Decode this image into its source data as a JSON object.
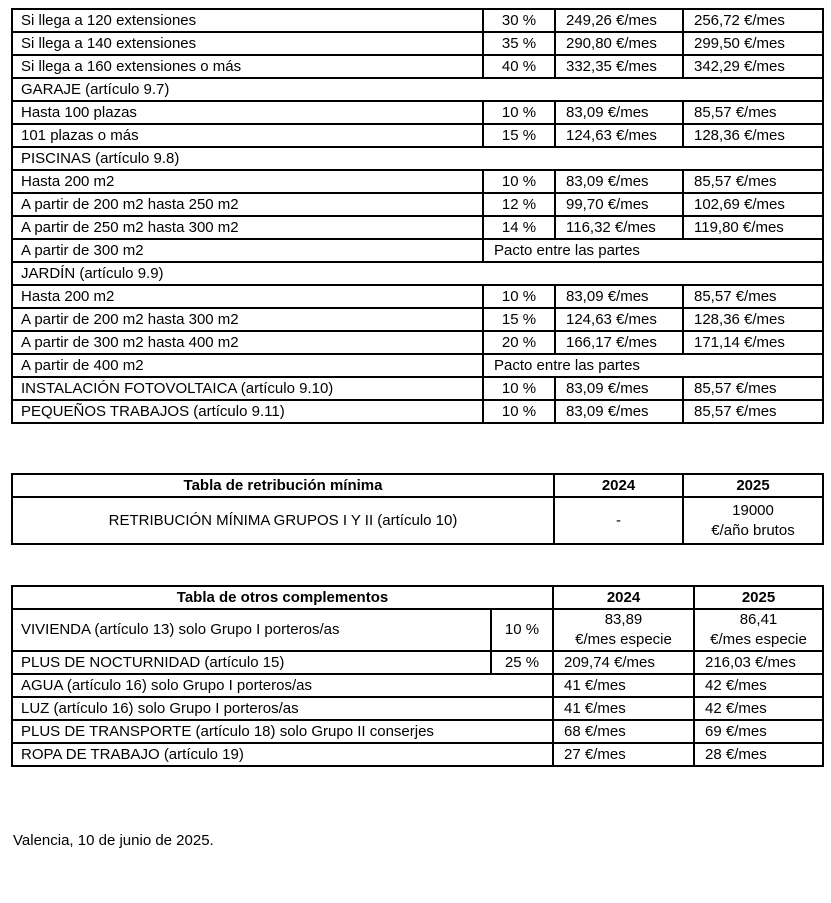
{
  "colors": {
    "text": "#000000",
    "background": "#ffffff",
    "table_border": "#000000"
  },
  "table1": {
    "rows": [
      {
        "type": "data",
        "concept": "Si llega a 120 extensiones",
        "percent": "30 %",
        "y2024": "249,26 €/mes",
        "y2025": "256,72 €/mes"
      },
      {
        "type": "data",
        "concept": "Si llega a 140 extensiones",
        "percent": "35 %",
        "y2024": "290,80 €/mes",
        "y2025": "299,50 €/mes"
      },
      {
        "type": "data",
        "concept": "Si llega a 160 extensiones o más",
        "percent": "40 %",
        "y2024": "332,35 €/mes",
        "y2025": "342,29 €/mes"
      },
      {
        "type": "section",
        "concept": "GARAJE (artículo 9.7)"
      },
      {
        "type": "data",
        "concept": "Hasta 100 plazas",
        "percent": "10 %",
        "y2024": "83,09 €/mes",
        "y2025": "85,57 €/mes"
      },
      {
        "type": "data",
        "concept": "101 plazas o más",
        "percent": "15 %",
        "y2024": "124,63 €/mes",
        "y2025": "128,36 €/mes"
      },
      {
        "type": "section",
        "concept": "PISCINAS (artículo 9.8)"
      },
      {
        "type": "data",
        "concept": "Hasta 200 m2",
        "percent": "10 %",
        "y2024": "83,09 €/mes",
        "y2025": "85,57 €/mes"
      },
      {
        "type": "data",
        "concept": "A partir de 200 m2 hasta 250 m2",
        "percent": "12 %",
        "y2024": "99,70 €/mes",
        "y2025": "102,69 €/mes"
      },
      {
        "type": "data",
        "concept": "A partir de 250 m2 hasta 300 m2",
        "percent": "14 %",
        "y2024": "116,32 €/mes",
        "y2025": "119,80 €/mes"
      },
      {
        "type": "pacto",
        "concept": "A partir de 300 m2",
        "value": "Pacto entre las partes"
      },
      {
        "type": "section",
        "concept": "JARDÍN (artículo 9.9)"
      },
      {
        "type": "data",
        "concept": "Hasta 200 m2",
        "percent": "10 %",
        "y2024": "83,09 €/mes",
        "y2025": "85,57 €/mes"
      },
      {
        "type": "data",
        "concept": "A partir de 200 m2 hasta 300 m2",
        "percent": "15 %",
        "y2024": "124,63 €/mes",
        "y2025": "128,36 €/mes"
      },
      {
        "type": "data",
        "concept": "A partir de 300 m2 hasta 400 m2",
        "percent": "20 %",
        "y2024": "166,17 €/mes",
        "y2025": "171,14 €/mes"
      },
      {
        "type": "pacto",
        "concept": "A partir de 400 m2",
        "value": "Pacto entre las partes"
      },
      {
        "type": "data",
        "concept": "INSTALACIÓN FOTOVOLTAICA (artículo 9.10)",
        "percent": "10 %",
        "y2024": "83,09 €/mes",
        "y2025": "85,57 €/mes"
      },
      {
        "type": "data",
        "concept": "PEQUEÑOS TRABAJOS (artículo 9.11)",
        "percent": "10 %",
        "y2024": "83,09 €/mes",
        "y2025": "85,57 €/mes"
      }
    ]
  },
  "table2": {
    "title": "Tabla de retribución mínima",
    "col2024": "2024",
    "col2025": "2025",
    "row": {
      "concept": "RETRIBUCIÓN MÍNIMA GRUPOS I Y II (artículo 10)",
      "y2024": "-",
      "y2025_l1": "19000",
      "y2025_l2": "€/año brutos"
    }
  },
  "table3": {
    "title": "Tabla de otros complementos",
    "col2024": "2024",
    "col2025": "2025",
    "rows": [
      {
        "type": "pct2",
        "concept": "VIVIENDA (artículo 13) solo Grupo I porteros/as",
        "percent": "10 %",
        "y2024_l1": "83,89",
        "y2024_l2": "€/mes especie",
        "y2025_l1": "86,41",
        "y2025_l2": "€/mes especie"
      },
      {
        "type": "pct",
        "concept": "PLUS DE NOCTURNIDAD (artículo 15)",
        "percent": "25 %",
        "y2024": "209,74 €/mes",
        "y2025": "216,03 €/mes"
      },
      {
        "type": "nopct",
        "concept": "AGUA (artículo 16) solo Grupo I porteros/as",
        "y2024": "41 €/mes",
        "y2025": "42 €/mes"
      },
      {
        "type": "nopct",
        "concept": "LUZ (artículo 16) solo Grupo I porteros/as",
        "y2024": "41 €/mes",
        "y2025": "42 €/mes"
      },
      {
        "type": "nopct",
        "concept": "PLUS DE TRANSPORTE (artículo 18) solo Grupo II conserjes",
        "y2024": "68 €/mes",
        "y2025": "69 €/mes"
      },
      {
        "type": "nopct",
        "concept": "ROPA DE TRABAJO (artículo 19)",
        "y2024": "27 €/mes",
        "y2025": "28 €/mes"
      }
    ]
  },
  "footer": {
    "text": "Valencia, 10 de junio de 2025."
  }
}
